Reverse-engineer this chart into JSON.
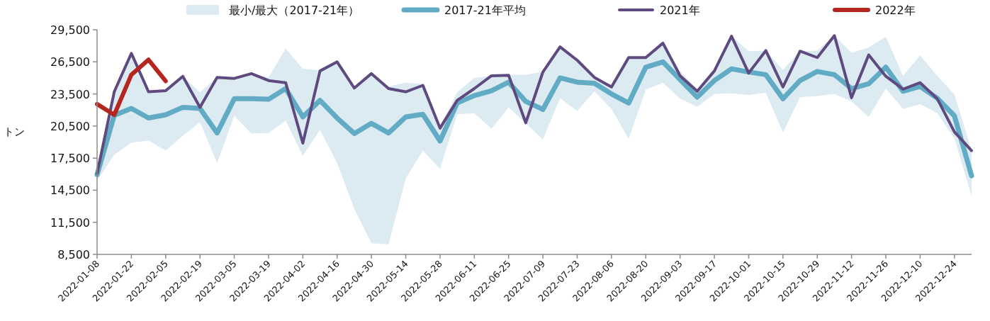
{
  "chart_data": {
    "type": "line",
    "ylabel": "トン",
    "legend": "top",
    "grid": false,
    "x": [
      "2022-01-08",
      "2022-01-15",
      "2022-01-22",
      "2022-01-29",
      "2022-02-05",
      "2022-02-12",
      "2022-02-19",
      "2022-02-26",
      "2022-03-05",
      "2022-03-12",
      "2022-03-19",
      "2022-03-26",
      "2022-04-02",
      "2022-04-09",
      "2022-04-16",
      "2022-04-23",
      "2022-04-30",
      "2022-05-07",
      "2022-05-14",
      "2022-05-21",
      "2022-05-28",
      "2022-06-04",
      "2022-06-11",
      "2022-06-18",
      "2022-06-25",
      "2022-07-02",
      "2022-07-09",
      "2022-07-16",
      "2022-07-23",
      "2022-07-30",
      "2022-08-06",
      "2022-08-13",
      "2022-08-20",
      "2022-08-27",
      "2022-09-03",
      "2022-09-10",
      "2022-09-17",
      "2022-09-24",
      "2022-10-01",
      "2022-10-08",
      "2022-10-15",
      "2022-10-22",
      "2022-10-29",
      "2022-11-05",
      "2022-11-12",
      "2022-11-19",
      "2022-11-26",
      "2022-12-03",
      "2022-12-10",
      "2022-12-17",
      "2022-12-24",
      "2022-12-31"
    ],
    "xlim": [
      "2022-01-08",
      "2022-12-31"
    ],
    "xticks": [
      "2022-01-08",
      "2022-01-22",
      "2022-02-05",
      "2022-02-19",
      "2022-03-05",
      "2022-03-19",
      "2022-04-02",
      "2022-04-16",
      "2022-04-30",
      "2022-05-14",
      "2022-05-28",
      "2022-06-11",
      "2022-06-25",
      "2022-07-09",
      "2022-07-23",
      "2022-08-06",
      "2022-08-20",
      "2022-09-03",
      "2022-09-17",
      "2022-10-01",
      "2022-10-15",
      "2022-10-29",
      "2022-11-12",
      "2022-11-26",
      "2022-12-10",
      "2022-12-24"
    ],
    "ylim": [
      8500,
      29500
    ],
    "yticks": [
      {
        "value": 8500,
        "label": "8,500"
      },
      {
        "value": 11500,
        "label": "11,500"
      },
      {
        "value": 14500,
        "label": "14,500"
      },
      {
        "value": 17500,
        "label": "17,500"
      },
      {
        "value": 20500,
        "label": "20,500"
      },
      {
        "value": 23500,
        "label": "23,500"
      },
      {
        "value": 26500,
        "label": "26,500"
      },
      {
        "value": 29500,
        "label": "29,500"
      }
    ],
    "series": [
      {
        "name": "最小/最大（2017-21年）",
        "type": "area",
        "color": "#dceaf2",
        "lower": [
          15400,
          17800,
          18950,
          19150,
          18200,
          19600,
          20850,
          17050,
          21450,
          19800,
          19850,
          21000,
          17700,
          20150,
          17050,
          12750,
          9550,
          9450,
          15600,
          18200,
          16500,
          21600,
          21700,
          20250,
          22250,
          20750,
          19250,
          23100,
          21900,
          23750,
          22100,
          19300,
          23900,
          24550,
          23050,
          22300,
          23500,
          23550,
          23400,
          23600,
          19900,
          23200,
          23300,
          23500,
          22800,
          21350,
          24000,
          22100,
          22550,
          21700,
          19350,
          13950
        ],
        "values": [
          null,
          null,
          null,
          null,
          null,
          null,
          null,
          null,
          null,
          null,
          null,
          null,
          null,
          null,
          null,
          null,
          null,
          null,
          null,
          null,
          null,
          null,
          null,
          null,
          null,
          null,
          null,
          null,
          null,
          null,
          null,
          null,
          null,
          null,
          null,
          null,
          null,
          null,
          null,
          null,
          null,
          null,
          null,
          null,
          null,
          null,
          null,
          null,
          null,
          null,
          null,
          null
        ],
        "upper": [
          16200,
          23700,
          27300,
          23750,
          23900,
          25150,
          23650,
          25050,
          24950,
          25400,
          25050,
          27750,
          25850,
          25700,
          26500,
          24050,
          25400,
          24200,
          24550,
          24450,
          20400,
          23650,
          25000,
          25200,
          25300,
          25300,
          25600,
          27900,
          26650,
          25050,
          24150,
          26900,
          26900,
          28250,
          25650,
          23900,
          25650,
          28900,
          27500,
          27550,
          25750,
          27500,
          27550,
          28950,
          27350,
          27850,
          28850,
          25200,
          27100,
          25200,
          23450,
          18200
        ]
      },
      {
        "name": "2017-21年平均",
        "type": "line",
        "color": "#62abc4",
        "values": [
          15950,
          21500,
          22150,
          21250,
          21550,
          22250,
          22150,
          19850,
          23050,
          23050,
          23000,
          24000,
          21350,
          22900,
          21250,
          19800,
          20750,
          19850,
          21350,
          21600,
          19100,
          22650,
          23350,
          23800,
          24600,
          22800,
          22050,
          25000,
          24600,
          24500,
          23500,
          22650,
          26000,
          26500,
          24850,
          23200,
          24750,
          25850,
          25550,
          25300,
          23050,
          24750,
          25600,
          25300,
          24000,
          24450,
          26000,
          23750,
          24200,
          23100,
          21450,
          15850
        ]
      },
      {
        "name": "2021年",
        "type": "line",
        "color": "#5e4a7e",
        "values": [
          16050,
          23700,
          27300,
          23700,
          23800,
          25150,
          22250,
          25050,
          24950,
          25400,
          24750,
          24550,
          18900,
          25650,
          26500,
          24050,
          25400,
          24000,
          23700,
          24300,
          20300,
          22900,
          24000,
          25200,
          25250,
          20800,
          25550,
          27900,
          26650,
          25050,
          24150,
          26900,
          26900,
          28250,
          25200,
          23750,
          25650,
          28900,
          25450,
          27550,
          24150,
          27500,
          26900,
          28950,
          23150,
          27150,
          25150,
          23950,
          24550,
          23050,
          19950,
          18200
        ]
      },
      {
        "name": "2022年",
        "color": "#b5261e",
        "type": "line",
        "x": [
          "2022-01-08",
          "2022-01-15",
          "2022-01-22",
          "2022-01-29",
          "2022-02-05"
        ],
        "values": [
          22550,
          21550,
          25300,
          26700,
          24700
        ]
      }
    ]
  }
}
